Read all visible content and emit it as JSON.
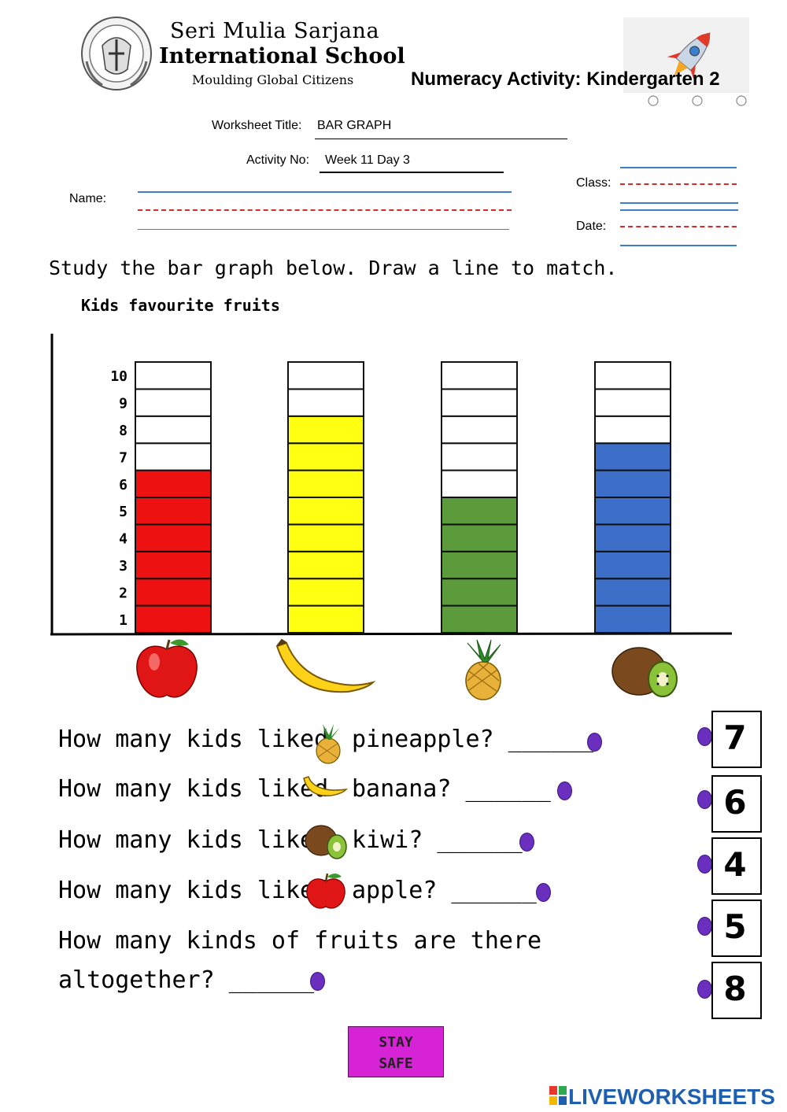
{
  "header": {
    "school_line1": "Seri  Mulia  Sarjana",
    "school_line2": "International School",
    "school_line3": "Moulding Global Citizens",
    "activity_title": "Numeracy Activity: Kindergarten 2"
  },
  "form": {
    "worksheet_title_label": "Worksheet Title:",
    "worksheet_title_value": "BAR GRAPH",
    "activity_no_label": "Activity No:",
    "activity_no_value": "Week 11 Day 3",
    "name_label": "Name:",
    "class_label": "Class:",
    "date_label": "Date:"
  },
  "instruction": "Study the bar graph below.  Draw a line to match.",
  "chart_data": {
    "type": "bar",
    "title": "Kids favourite fruits",
    "categories": [
      "apple",
      "banana",
      "pineapple",
      "kiwi"
    ],
    "values": [
      6,
      8,
      5,
      7
    ],
    "ylim": [
      0,
      10
    ],
    "yticks": [
      "1",
      "2",
      "3",
      "4",
      "5",
      "6",
      "7",
      "8",
      "9",
      "10"
    ],
    "colors": [
      "#ee1111",
      "#ffff11",
      "#5b9b3c",
      "#3d6fc9"
    ],
    "empty_color": "#ffffff",
    "grid": true
  },
  "questions": [
    {
      "text_before": "How many kids liked",
      "icon": "pineapple-icon",
      "text_after": "pineapple? ______"
    },
    {
      "text_before": "How many kids liked",
      "icon": "banana-icon",
      "text_after": "banana? ______"
    },
    {
      "text_before": "How many kids liked",
      "icon": "kiwi-icon",
      "text_after": "kiwi? ______"
    },
    {
      "text_before": "How many kids liked",
      "icon": "apple-icon",
      "text_after": "apple? ______"
    },
    {
      "line1": "How many kinds of fruits are there",
      "line2": "altogether? ______"
    }
  ],
  "answers": [
    "7",
    "6",
    "4",
    "5",
    "8"
  ],
  "button": {
    "line1": "STAY",
    "line2": "SAFE"
  },
  "brand": "LIVEWORKSHEETS",
  "colors": {
    "dot": "#6a2fbf",
    "button": "#d623d6",
    "brand": "#1f5fb0"
  }
}
